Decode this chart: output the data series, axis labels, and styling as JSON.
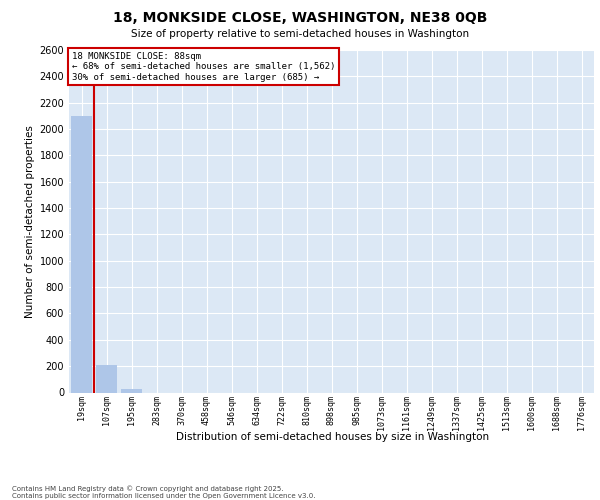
{
  "title_line1": "18, MONKSIDE CLOSE, WASHINGTON, NE38 0QB",
  "title_line2": "Size of property relative to semi-detached houses in Washington",
  "xlabel": "Distribution of semi-detached houses by size in Washington",
  "ylabel": "Number of semi-detached properties",
  "annotation_text_line1": "18 MONKSIDE CLOSE: 88sqm",
  "annotation_text_line2": "← 68% of semi-detached houses are smaller (1,562)",
  "annotation_text_line3": "30% of semi-detached houses are larger (685) →",
  "bin_labels": [
    "19sqm",
    "107sqm",
    "195sqm",
    "283sqm",
    "370sqm",
    "458sqm",
    "546sqm",
    "634sqm",
    "722sqm",
    "810sqm",
    "898sqm",
    "985sqm",
    "1073sqm",
    "1161sqm",
    "1249sqm",
    "1337sqm",
    "1425sqm",
    "1513sqm",
    "1600sqm",
    "1688sqm",
    "1776sqm"
  ],
  "bar_values": [
    2100,
    210,
    30,
    0,
    0,
    0,
    0,
    0,
    0,
    0,
    0,
    0,
    0,
    0,
    0,
    0,
    0,
    0,
    0,
    0,
    0
  ],
  "bar_color": "#aec6e8",
  "vline_pos": 0.5,
  "vline_color": "#cc0000",
  "ylim": [
    0,
    2600
  ],
  "yticks": [
    0,
    200,
    400,
    600,
    800,
    1000,
    1200,
    1400,
    1600,
    1800,
    2000,
    2200,
    2400,
    2600
  ],
  "bg_color": "#dce8f5",
  "grid_color": "#ffffff",
  "footer_line1": "Contains HM Land Registry data © Crown copyright and database right 2025.",
  "footer_line2": "Contains public sector information licensed under the Open Government Licence v3.0."
}
